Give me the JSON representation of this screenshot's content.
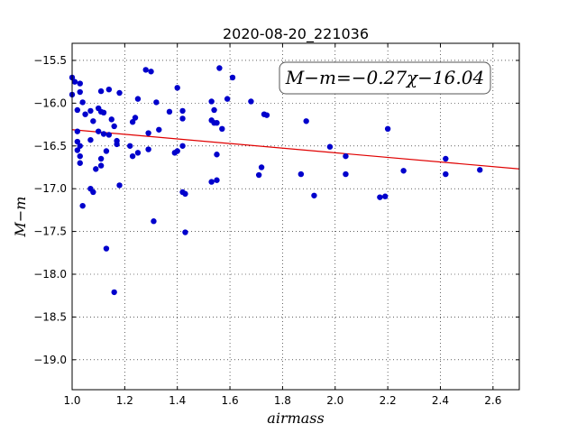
{
  "chart_data": {
    "type": "scatter",
    "title": "2020-08-20_221036",
    "xlabel": "airmass",
    "ylabel": "M−m",
    "annotation": "M−m=−0.27χ−16.04",
    "xlim": [
      1.0,
      2.7
    ],
    "ylim": [
      -15.3,
      -19.35
    ],
    "y_inverted": true,
    "xticks": [
      "1.0",
      "1.2",
      "1.4",
      "1.6",
      "1.8",
      "2.0",
      "2.2",
      "2.4",
      "2.6"
    ],
    "yticks": [
      "−15.5",
      "−16.0",
      "−16.5",
      "−17.0",
      "−17.5",
      "−18.0",
      "−18.5",
      "−19.0"
    ],
    "grid": true,
    "colors": {
      "points": "#0000cc",
      "fit_line": "#e00000"
    },
    "fit": {
      "slope": -0.27,
      "intercept": -16.04
    },
    "points": [
      {
        "x": 1.0,
        "y": -15.7
      },
      {
        "x": 1.01,
        "y": -15.75
      },
      {
        "x": 1.0,
        "y": -15.9
      },
      {
        "x": 1.02,
        "y": -16.08
      },
      {
        "x": 1.02,
        "y": -16.33
      },
      {
        "x": 1.02,
        "y": -16.45
      },
      {
        "x": 1.03,
        "y": -16.5
      },
      {
        "x": 1.02,
        "y": -16.55
      },
      {
        "x": 1.03,
        "y": -16.62
      },
      {
        "x": 1.03,
        "y": -16.7
      },
      {
        "x": 1.03,
        "y": -15.77
      },
      {
        "x": 1.03,
        "y": -15.87
      },
      {
        "x": 1.04,
        "y": -15.99
      },
      {
        "x": 1.04,
        "y": -17.2
      },
      {
        "x": 1.05,
        "y": -16.13
      },
      {
        "x": 1.07,
        "y": -16.43
      },
      {
        "x": 1.07,
        "y": -16.09
      },
      {
        "x": 1.07,
        "y": -17.0
      },
      {
        "x": 1.08,
        "y": -17.04
      },
      {
        "x": 1.08,
        "y": -16.21
      },
      {
        "x": 1.09,
        "y": -16.77
      },
      {
        "x": 1.1,
        "y": -16.06
      },
      {
        "x": 1.1,
        "y": -16.33
      },
      {
        "x": 1.11,
        "y": -16.1
      },
      {
        "x": 1.11,
        "y": -15.86
      },
      {
        "x": 1.11,
        "y": -16.65
      },
      {
        "x": 1.11,
        "y": -16.73
      },
      {
        "x": 1.12,
        "y": -16.11
      },
      {
        "x": 1.12,
        "y": -16.36
      },
      {
        "x": 1.13,
        "y": -16.56
      },
      {
        "x": 1.13,
        "y": -17.7
      },
      {
        "x": 1.14,
        "y": -15.84
      },
      {
        "x": 1.14,
        "y": -16.37
      },
      {
        "x": 1.15,
        "y": -16.19
      },
      {
        "x": 1.16,
        "y": -16.27
      },
      {
        "x": 1.16,
        "y": -18.21
      },
      {
        "x": 1.17,
        "y": -16.44
      },
      {
        "x": 1.17,
        "y": -16.48
      },
      {
        "x": 1.18,
        "y": -16.96
      },
      {
        "x": 1.18,
        "y": -15.88
      },
      {
        "x": 1.22,
        "y": -16.5
      },
      {
        "x": 1.23,
        "y": -16.62
      },
      {
        "x": 1.23,
        "y": -16.22
      },
      {
        "x": 1.24,
        "y": -16.17
      },
      {
        "x": 1.25,
        "y": -15.95
      },
      {
        "x": 1.25,
        "y": -16.58
      },
      {
        "x": 1.28,
        "y": -15.61
      },
      {
        "x": 1.29,
        "y": -16.54
      },
      {
        "x": 1.29,
        "y": -16.35
      },
      {
        "x": 1.3,
        "y": -15.63
      },
      {
        "x": 1.31,
        "y": -17.38
      },
      {
        "x": 1.32,
        "y": -15.99
      },
      {
        "x": 1.33,
        "y": -16.31
      },
      {
        "x": 1.37,
        "y": -16.1
      },
      {
        "x": 1.39,
        "y": -16.58
      },
      {
        "x": 1.4,
        "y": -15.82
      },
      {
        "x": 1.4,
        "y": -16.56
      },
      {
        "x": 1.42,
        "y": -16.09
      },
      {
        "x": 1.42,
        "y": -16.18
      },
      {
        "x": 1.42,
        "y": -16.5
      },
      {
        "x": 1.42,
        "y": -17.04
      },
      {
        "x": 1.43,
        "y": -17.06
      },
      {
        "x": 1.43,
        "y": -17.51
      },
      {
        "x": 1.53,
        "y": -15.98
      },
      {
        "x": 1.53,
        "y": -16.2
      },
      {
        "x": 1.53,
        "y": -16.92
      },
      {
        "x": 1.54,
        "y": -16.08
      },
      {
        "x": 1.54,
        "y": -16.23
      },
      {
        "x": 1.55,
        "y": -16.23
      },
      {
        "x": 1.55,
        "y": -16.6
      },
      {
        "x": 1.55,
        "y": -16.9
      },
      {
        "x": 1.56,
        "y": -15.59
      },
      {
        "x": 1.57,
        "y": -16.3
      },
      {
        "x": 1.59,
        "y": -15.95
      },
      {
        "x": 1.61,
        "y": -15.7
      },
      {
        "x": 1.68,
        "y": -15.98
      },
      {
        "x": 1.71,
        "y": -16.84
      },
      {
        "x": 1.72,
        "y": -16.75
      },
      {
        "x": 1.73,
        "y": -16.13
      },
      {
        "x": 1.74,
        "y": -16.14
      },
      {
        "x": 1.87,
        "y": -16.83
      },
      {
        "x": 1.89,
        "y": -16.21
      },
      {
        "x": 1.92,
        "y": -17.08
      },
      {
        "x": 1.98,
        "y": -16.51
      },
      {
        "x": 2.04,
        "y": -16.62
      },
      {
        "x": 2.04,
        "y": -16.83
      },
      {
        "x": 2.17,
        "y": -17.1
      },
      {
        "x": 2.19,
        "y": -17.09
      },
      {
        "x": 2.2,
        "y": -16.3
      },
      {
        "x": 2.26,
        "y": -16.79
      },
      {
        "x": 2.42,
        "y": -16.65
      },
      {
        "x": 2.42,
        "y": -16.83
      },
      {
        "x": 2.55,
        "y": -16.78
      }
    ]
  }
}
